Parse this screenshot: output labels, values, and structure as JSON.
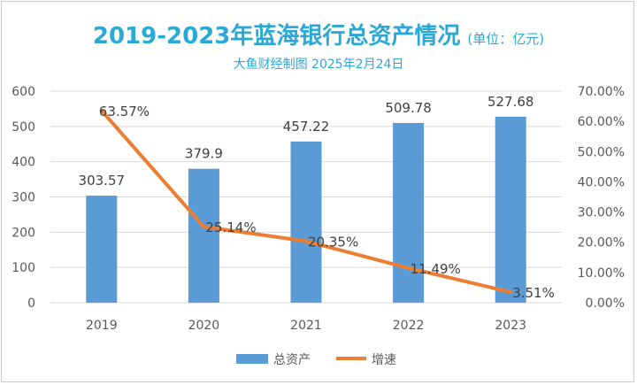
{
  "chart_data": {
    "type": "bar+line",
    "title": "2019-2023年蓝海银行总资产情况",
    "unit": "(单位：亿元)",
    "subtitle": "大鱼财经制图 2025年2月24日",
    "categories": [
      "2019",
      "2020",
      "2021",
      "2022",
      "2023"
    ],
    "series": [
      {
        "name": "总资产",
        "type": "bar",
        "axis": "left",
        "values": [
          303.57,
          379.9,
          457.22,
          509.78,
          527.68
        ],
        "labels": [
          "303.57",
          "379.9",
          "457.22",
          "509.78",
          "527.68"
        ],
        "color": "#5b9bd5"
      },
      {
        "name": "增速",
        "type": "line",
        "axis": "right",
        "values": [
          63.57,
          25.14,
          20.35,
          11.49,
          3.51
        ],
        "labels": [
          "63.57%",
          "25.14%",
          "20.35%",
          "11.49%",
          "3.51%"
        ],
        "color": "#ed7d31"
      }
    ],
    "y_left": {
      "range": [
        0,
        600
      ],
      "ticks": [
        "0",
        "100",
        "200",
        "300",
        "400",
        "500",
        "600"
      ]
    },
    "y_right": {
      "range": [
        0,
        70
      ],
      "ticks": [
        "0.00%",
        "10.00%",
        "20.00%",
        "30.00%",
        "40.00%",
        "50.00%",
        "60.00%",
        "70.00%"
      ]
    },
    "grid": true,
    "legend_position": "bottom"
  }
}
